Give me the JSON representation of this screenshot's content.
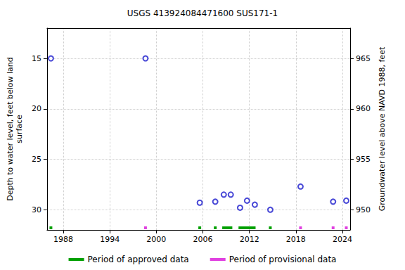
{
  "chart_data": {
    "type": "scatter",
    "title": "USGS 413924084471600 SUS171-1",
    "ylabel": "Depth to water level, feet below land\nsurface",
    "y2label": "Groundwater level above NAVD 1988, feet",
    "x": [
      1986.4,
      1998.6,
      2005.6,
      2007.6,
      2008.7,
      2009.6,
      2010.8,
      2011.7,
      2012.7,
      2014.7,
      2018.6,
      2022.8,
      2024.5
    ],
    "values": [
      15.0,
      15.0,
      29.3,
      29.2,
      28.5,
      28.5,
      29.8,
      29.1,
      29.5,
      30.0,
      27.7,
      29.2,
      29.1
    ],
    "color": "#1a1acc",
    "marker": "circle",
    "xlim": [
      1985.9,
      2025.0
    ],
    "xticks": [
      1988,
      1994,
      2000,
      2006,
      2012,
      2018,
      2024
    ],
    "ylim": [
      32,
      12
    ],
    "yticks": [
      15,
      20,
      25,
      30
    ],
    "y2lim": [
      948,
      968
    ],
    "y2ticks": [
      950,
      955,
      960,
      965
    ],
    "grid": true,
    "legend": "bottom",
    "periods": [
      {
        "name": "Period of approved data",
        "color": "#00a000",
        "ranges": [
          [
            1986.4,
            1986.4
          ],
          [
            2005.6,
            2005.6
          ],
          [
            2007.6,
            2007.6
          ],
          [
            2008.5,
            2009.8
          ],
          [
            2010.6,
            2012.8
          ],
          [
            2014.7,
            2014.7
          ]
        ]
      },
      {
        "name": "Period of provisional data",
        "color": "#e040e0",
        "ranges": [
          [
            1998.6,
            1998.6
          ],
          [
            2018.6,
            2018.6
          ],
          [
            2022.8,
            2022.8
          ],
          [
            2024.5,
            2024.5
          ]
        ]
      }
    ]
  }
}
